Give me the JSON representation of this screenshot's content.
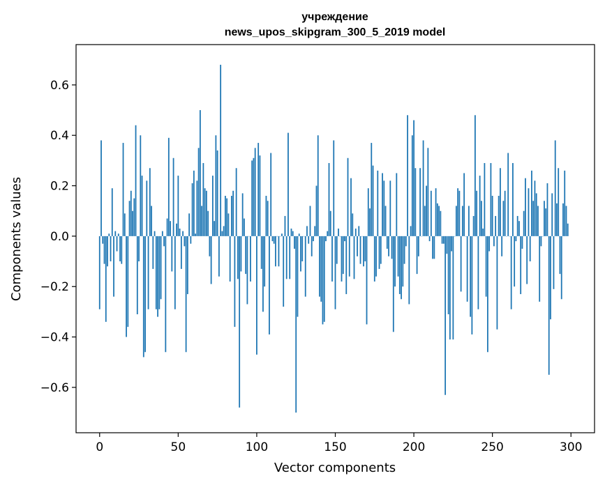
{
  "chart_data": {
    "type": "bar",
    "title_line1": "учреждение",
    "title_line2": "news_upos_skipgram_300_5_2019 model",
    "xlabel": "Vector components",
    "ylabel": "Components values",
    "xlim": [
      -15,
      315
    ],
    "ylim": [
      -0.78,
      0.76
    ],
    "xticks": [
      0,
      50,
      100,
      150,
      200,
      250,
      300
    ],
    "xtick_labels": [
      "0",
      "50",
      "100",
      "150",
      "200",
      "250",
      "300"
    ],
    "yticks": [
      -0.6,
      -0.4,
      -0.2,
      0.0,
      0.2,
      0.4,
      0.6
    ],
    "ytick_labels": [
      "−0.6",
      "−0.4",
      "−0.2",
      "0.0",
      "0.2",
      "0.4",
      "0.6"
    ],
    "bar_color": "#1f77b4",
    "values": [
      -0.29,
      0.38,
      -0.03,
      -0.11,
      -0.34,
      -0.12,
      0.01,
      -0.1,
      0.19,
      -0.24,
      0.02,
      -0.06,
      0.01,
      -0.1,
      -0.11,
      0.37,
      0.09,
      -0.4,
      -0.36,
      0.14,
      0.18,
      0.1,
      0.15,
      0.44,
      -0.31,
      -0.1,
      0.4,
      0.24,
      -0.48,
      -0.46,
      0.22,
      -0.29,
      0.27,
      0.12,
      -0.13,
      0.02,
      -0.29,
      -0.32,
      -0.29,
      -0.25,
      0.02,
      -0.04,
      -0.46,
      0.07,
      0.39,
      0.06,
      -0.14,
      0.31,
      -0.29,
      0.05,
      0.24,
      0.03,
      -0.13,
      0.02,
      -0.04,
      -0.46,
      -0.23,
      0.09,
      -0.03,
      0.21,
      0.26,
      0.01,
      0.22,
      0.35,
      0.5,
      0.12,
      0.29,
      0.19,
      0.18,
      0.1,
      -0.08,
      -0.19,
      0.24,
      0.06,
      0.4,
      0.34,
      -0.16,
      0.68,
      0.02,
      0.04,
      0.16,
      0.15,
      0.09,
      -0.18,
      0.16,
      0.18,
      -0.36,
      0.27,
      -0.17,
      -0.68,
      -0.14,
      0.17,
      0.07,
      -0.15,
      -0.27,
      0.0,
      -0.18,
      0.3,
      0.31,
      0.35,
      -0.47,
      0.37,
      0.32,
      -0.13,
      -0.3,
      -0.2,
      0.16,
      0.14,
      -0.39,
      0.33,
      -0.02,
      -0.03,
      -0.12,
      0.0,
      -0.12,
      0.0,
      0.01,
      -0.28,
      0.08,
      -0.17,
      0.41,
      -0.17,
      0.03,
      0.02,
      -0.05,
      -0.7,
      -0.32,
      0.01,
      -0.14,
      -0.1,
      0.0,
      -0.24,
      0.04,
      -0.03,
      0.12,
      -0.08,
      -0.02,
      0.04,
      0.2,
      0.4,
      -0.24,
      -0.26,
      -0.35,
      -0.34,
      -0.02,
      0.02,
      0.29,
      0.1,
      -0.18,
      0.38,
      -0.29,
      -0.11,
      0.03,
      0.0,
      -0.18,
      -0.15,
      -0.02,
      -0.23,
      0.31,
      -0.16,
      0.23,
      0.09,
      -0.17,
      0.03,
      -0.08,
      0.04,
      -0.11,
      0.0,
      -0.12,
      -0.1,
      -0.35,
      0.19,
      0.11,
      0.37,
      0.28,
      -0.18,
      -0.16,
      0.26,
      -0.13,
      -0.11,
      0.25,
      0.22,
      0.12,
      -0.05,
      -0.08,
      0.22,
      -0.09,
      -0.38,
      -0.2,
      0.25,
      -0.16,
      -0.23,
      -0.25,
      -0.2,
      -0.11,
      -0.04,
      0.48,
      -0.27,
      0.04,
      0.4,
      0.46,
      0.27,
      -0.15,
      -0.08,
      0.27,
      0.0,
      0.38,
      0.12,
      0.2,
      0.35,
      -0.02,
      0.18,
      -0.09,
      -0.09,
      0.19,
      0.13,
      0.12,
      0.1,
      -0.03,
      -0.03,
      -0.63,
      -0.07,
      -0.31,
      -0.41,
      -0.06,
      -0.41,
      0.0,
      0.12,
      0.19,
      0.18,
      -0.22,
      0.12,
      0.25,
      0.0,
      -0.26,
      0.12,
      -0.32,
      -0.39,
      0.08,
      0.48,
      0.18,
      -0.29,
      0.24,
      0.14,
      0.03,
      0.29,
      -0.24,
      -0.46,
      -0.06,
      0.29,
      0.16,
      -0.04,
      0.08,
      -0.37,
      0.16,
      0.27,
      -0.08,
      0.14,
      0.18,
      0.0,
      0.33,
      0.0,
      -0.29,
      0.29,
      -0.2,
      -0.02,
      0.08,
      0.06,
      -0.23,
      -0.05,
      0.1,
      0.23,
      -0.19,
      0.19,
      -0.1,
      0.26,
      0.14,
      0.22,
      0.17,
      0.12,
      -0.26,
      -0.04,
      0.0,
      0.14,
      0.11,
      0.21,
      -0.55,
      -0.33,
      0.17,
      -0.21,
      0.38,
      0.13,
      0.27,
      -0.15,
      -0.25,
      0.13,
      0.26,
      0.12,
      0.05
    ]
  }
}
